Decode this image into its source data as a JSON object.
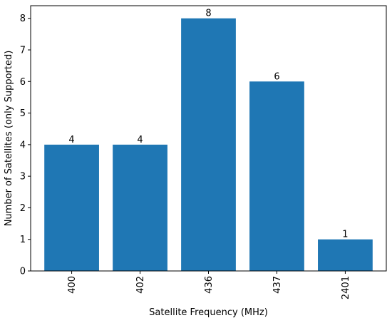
{
  "chart_data": {
    "type": "bar",
    "categories": [
      "400",
      "402",
      "436",
      "437",
      "2401"
    ],
    "values": [
      4,
      4,
      8,
      6,
      1
    ],
    "data_labels": [
      "4",
      "4",
      "8",
      "6",
      "1"
    ],
    "xlabel": "Satellite Frequency (MHz)",
    "ylabel": "Number of Satellites (only Supported)",
    "ylim": [
      0,
      8.4
    ],
    "yticks": [
      0,
      1,
      2,
      3,
      4,
      5,
      6,
      7,
      8
    ],
    "grid": false,
    "bar_color": "#1f77b4",
    "x_tick_rotation": "vertical"
  }
}
